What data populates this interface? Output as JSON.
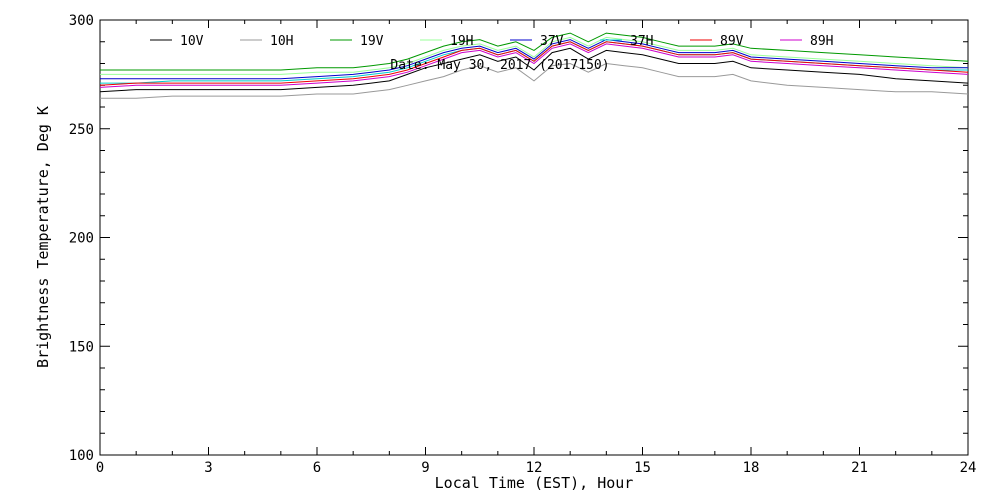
{
  "chart_data": {
    "type": "line",
    "title": "",
    "annotation": "Date: May 30, 2017 (2017150)",
    "xlabel": "Local Time (EST), Hour",
    "ylabel": "Brightness Temperature, Deg K",
    "xlim": [
      0,
      24
    ],
    "ylim": [
      100,
      300
    ],
    "x_ticks": [
      "0",
      "3",
      "6",
      "9",
      "12",
      "15",
      "18",
      "21",
      "24"
    ],
    "y_ticks": [
      "100",
      "150",
      "200",
      "250",
      "300"
    ],
    "grid": false,
    "legend_position": "top",
    "x": [
      0,
      1,
      2,
      3,
      4,
      5,
      6,
      7,
      7.5,
      8,
      8.5,
      9,
      9.5,
      10,
      10.5,
      11,
      11.5,
      12,
      12.5,
      13,
      13.5,
      14,
      14.5,
      15,
      15.5,
      16,
      16.5,
      17,
      17.5,
      18,
      19,
      20,
      21,
      22,
      23,
      24
    ],
    "series": [
      {
        "name": "10V",
        "color": "#000000",
        "values": [
          267,
          268,
          268,
          268,
          268,
          268,
          269,
          270,
          271,
          272,
          275,
          278,
          280,
          282,
          284,
          281,
          283,
          277,
          285,
          287,
          282,
          286,
          285,
          284,
          282,
          280,
          280,
          280,
          281,
          278,
          277,
          276,
          275,
          273,
          272,
          271
        ]
      },
      {
        "name": "10H",
        "color": "#999999",
        "values": [
          264,
          264,
          265,
          265,
          265,
          265,
          266,
          266,
          267,
          268,
          270,
          272,
          274,
          277,
          279,
          276,
          278,
          272,
          279,
          280,
          276,
          280,
          279,
          278,
          276,
          274,
          274,
          274,
          275,
          272,
          270,
          269,
          268,
          267,
          267,
          266
        ]
      },
      {
        "name": "19V",
        "color": "#009900",
        "values": [
          277,
          277,
          277,
          277,
          277,
          277,
          278,
          278,
          279,
          280,
          282,
          285,
          288,
          290,
          291,
          288,
          290,
          286,
          292,
          294,
          290,
          294,
          293,
          292,
          290,
          288,
          288,
          288,
          289,
          287,
          286,
          285,
          284,
          283,
          282,
          281
        ]
      },
      {
        "name": "19H",
        "color": "#99ff99",
        "values": [
          275,
          275,
          275,
          275,
          275,
          275,
          276,
          276,
          277,
          278,
          280,
          283,
          286,
          288,
          289,
          286,
          288,
          283,
          290,
          292,
          288,
          292,
          291,
          290,
          288,
          286,
          286,
          286,
          287,
          284,
          283,
          282,
          281,
          280,
          279,
          278
        ]
      },
      {
        "name": "37V",
        "color": "#0000cc",
        "values": [
          273,
          273,
          273,
          273,
          273,
          273,
          274,
          275,
          276,
          277,
          279,
          282,
          285,
          287,
          288,
          285,
          287,
          282,
          289,
          291,
          287,
          291,
          290,
          289,
          287,
          285,
          285,
          285,
          286,
          283,
          282,
          281,
          280,
          279,
          278,
          278
        ]
      },
      {
        "name": "37H",
        "color": "#00cccc",
        "values": [
          271,
          271,
          272,
          272,
          272,
          272,
          273,
          274,
          275,
          276,
          278,
          281,
          284,
          286,
          287,
          284,
          286,
          281,
          288,
          290,
          286,
          290,
          289,
          288,
          286,
          284,
          284,
          284,
          285,
          282,
          281,
          280,
          279,
          278,
          277,
          277
        ]
      },
      {
        "name": "89V",
        "color": "#ee0000",
        "values": [
          270,
          271,
          271,
          271,
          271,
          271,
          272,
          273,
          274,
          275,
          277,
          280,
          283,
          286,
          287,
          284,
          286,
          281,
          288,
          290,
          286,
          290,
          289,
          288,
          286,
          284,
          284,
          284,
          285,
          282,
          281,
          280,
          279,
          278,
          277,
          276
        ]
      },
      {
        "name": "89H",
        "color": "#cc00cc",
        "values": [
          269,
          270,
          270,
          270,
          270,
          270,
          271,
          272,
          273,
          274,
          276,
          279,
          282,
          285,
          286,
          283,
          285,
          280,
          287,
          289,
          285,
          289,
          288,
          287,
          285,
          283,
          283,
          283,
          284,
          281,
          280,
          279,
          278,
          277,
          276,
          275
        ]
      }
    ]
  }
}
